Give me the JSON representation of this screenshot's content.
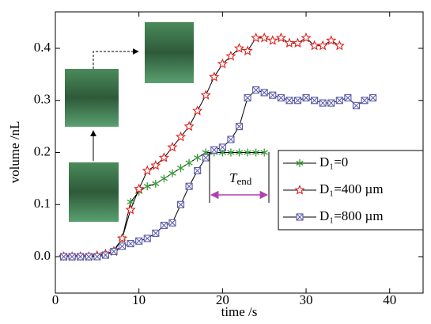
{
  "chart_data": {
    "type": "line",
    "xlabel": "time /s",
    "ylabel": "volume /nL",
    "xlim": [
      0,
      44
    ],
    "ylim": [
      -0.07,
      0.47
    ],
    "xticks": [
      0,
      10,
      20,
      30,
      40
    ],
    "yticks": [
      {
        "value": 0,
        "label": "0.0"
      },
      0.1,
      0.2,
      0.3,
      0.4
    ],
    "annotation": "T",
    "annotation_sub": "end",
    "legend": "right",
    "series": [
      {
        "name": "D₁=0",
        "color": "#3a9a3a",
        "marker": "asterisk",
        "x": [
          1,
          2,
          3,
          4,
          5,
          6,
          7,
          8,
          9,
          10,
          11,
          12,
          13,
          14,
          15,
          16,
          17,
          18,
          19,
          20,
          21,
          22,
          23,
          24,
          25
        ],
        "values": [
          0,
          0,
          0,
          0,
          0.002,
          0.005,
          0.012,
          0.035,
          0.105,
          0.125,
          0.135,
          0.14,
          0.15,
          0.16,
          0.17,
          0.18,
          0.19,
          0.2,
          0.2,
          0.2,
          0.2,
          0.2,
          0.2,
          0.2,
          0.2
        ]
      },
      {
        "name": "D₁=400 µm",
        "color": "#e0201c",
        "marker": "star",
        "x": [
          1,
          2,
          3,
          4,
          5,
          6,
          7,
          8,
          9,
          10,
          11,
          12,
          13,
          14,
          15,
          16,
          17,
          18,
          19,
          20,
          21,
          22,
          23,
          24,
          25,
          26,
          27,
          28,
          29,
          30,
          31,
          32,
          33,
          34
        ],
        "values": [
          0,
          0,
          0,
          0,
          0.002,
          0.005,
          0.01,
          0.035,
          0.09,
          0.13,
          0.165,
          0.175,
          0.19,
          0.21,
          0.23,
          0.25,
          0.28,
          0.31,
          0.345,
          0.37,
          0.385,
          0.4,
          0.395,
          0.42,
          0.42,
          0.415,
          0.42,
          0.41,
          0.41,
          0.42,
          0.405,
          0.405,
          0.415,
          0.405
        ]
      },
      {
        "name": "D₁=800 µm",
        "color": "#5a5aa8",
        "marker": "boxx",
        "x": [
          1,
          2,
          3,
          4,
          5,
          6,
          7,
          8,
          9,
          10,
          11,
          12,
          13,
          14,
          15,
          16,
          17,
          18,
          19,
          20,
          21,
          22,
          23,
          24,
          25,
          26,
          27,
          28,
          29,
          30,
          31,
          32,
          33,
          34,
          35,
          36,
          37,
          38
        ],
        "values": [
          0,
          0,
          0,
          0,
          0,
          0.003,
          0.01,
          0.02,
          0.025,
          0.03,
          0.035,
          0.045,
          0.06,
          0.065,
          0.1,
          0.135,
          0.165,
          0.19,
          0.205,
          0.21,
          0.225,
          0.25,
          0.305,
          0.32,
          0.315,
          0.31,
          0.305,
          0.3,
          0.3,
          0.305,
          0.3,
          0.295,
          0.295,
          0.3,
          0.305,
          0.29,
          0.3,
          0.305
        ]
      }
    ]
  }
}
